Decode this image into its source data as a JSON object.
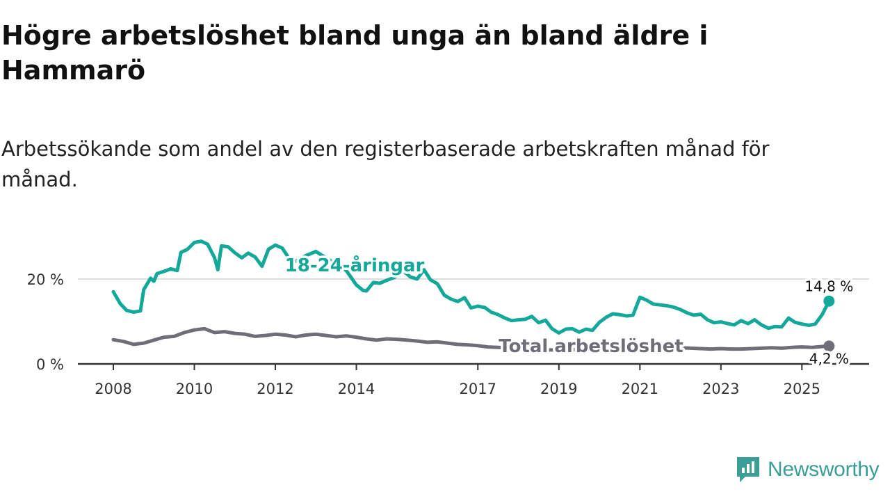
{
  "title": "Högre arbetslöshet bland unga än bland äldre i Hammarö",
  "subtitle": "Arbetssökande som andel av den registerbaserade arbetskraften månad för månad.",
  "brand": {
    "name": "Newsworthy",
    "icon": "newsworthy-logo-icon"
  },
  "colors": {
    "youth": "#14a89a",
    "total": "#6e6e78",
    "grid": "#dddddd",
    "axis": "#333333",
    "brand": "#3a9e96"
  },
  "chart_data": {
    "type": "line",
    "title": "Högre arbetslöshet bland unga än bland äldre i Hammarö",
    "subtitle": "Arbetssökande som andel av den registerbaserade arbetskraften månad för månad.",
    "xlabel": "",
    "ylabel": "",
    "xlim": [
      2008.0,
      2025.75
    ],
    "ylim": [
      0,
      30
    ],
    "grid": true,
    "x_ticks": [
      {
        "value": 2008,
        "label": "2008"
      },
      {
        "value": 2010,
        "label": "2010"
      },
      {
        "value": 2012,
        "label": "2012"
      },
      {
        "value": 2014,
        "label": "2014"
      },
      {
        "value": 2017,
        "label": "2017"
      },
      {
        "value": 2019,
        "label": "2019"
      },
      {
        "value": 2021,
        "label": "2021"
      },
      {
        "value": 2023,
        "label": "2023"
      },
      {
        "value": 2025,
        "label": "2025"
      }
    ],
    "y_ticks": [
      {
        "value": 0,
        "label": "0 %"
      },
      {
        "value": 20,
        "label": "20 %"
      }
    ],
    "series": [
      {
        "name": "18-24-åringar",
        "label": "18-24-åringar",
        "end_label": "14,8 %",
        "end_value": 14.8,
        "points": [
          [
            2008.0,
            17.0
          ],
          [
            2008.17,
            14.2
          ],
          [
            2008.33,
            12.6
          ],
          [
            2008.5,
            12.2
          ],
          [
            2008.67,
            12.5
          ],
          [
            2008.75,
            17.5
          ],
          [
            2008.92,
            20.2
          ],
          [
            2009.0,
            19.5
          ],
          [
            2009.08,
            21.3
          ],
          [
            2009.25,
            21.8
          ],
          [
            2009.42,
            22.4
          ],
          [
            2009.58,
            22.0
          ],
          [
            2009.67,
            26.3
          ],
          [
            2009.83,
            27.0
          ],
          [
            2010.0,
            28.6
          ],
          [
            2010.17,
            28.9
          ],
          [
            2010.33,
            28.2
          ],
          [
            2010.5,
            25.0
          ],
          [
            2010.58,
            22.2
          ],
          [
            2010.67,
            27.8
          ],
          [
            2010.83,
            27.6
          ],
          [
            2011.0,
            26.2
          ],
          [
            2011.17,
            25.0
          ],
          [
            2011.33,
            26.1
          ],
          [
            2011.5,
            25.2
          ],
          [
            2011.67,
            23.0
          ],
          [
            2011.83,
            27.0
          ],
          [
            2012.0,
            28.0
          ],
          [
            2012.17,
            27.3
          ],
          [
            2012.33,
            25.0
          ],
          [
            2012.5,
            24.2
          ],
          [
            2012.75,
            25.5
          ],
          [
            2013.0,
            26.5
          ],
          [
            2013.25,
            25.0
          ],
          [
            2013.5,
            23.5
          ],
          [
            2013.75,
            22.0
          ],
          [
            2014.0,
            18.6
          ],
          [
            2014.17,
            17.3
          ],
          [
            2014.25,
            17.2
          ],
          [
            2014.42,
            19.2
          ],
          [
            2014.58,
            19.0
          ],
          [
            2014.75,
            19.7
          ],
          [
            2014.92,
            20.3
          ],
          [
            2015.17,
            21.8
          ],
          [
            2015.33,
            20.5
          ],
          [
            2015.5,
            20.0
          ],
          [
            2015.67,
            22.2
          ],
          [
            2015.83,
            19.8
          ],
          [
            2016.0,
            18.9
          ],
          [
            2016.17,
            16.2
          ],
          [
            2016.33,
            15.3
          ],
          [
            2016.5,
            14.7
          ],
          [
            2016.67,
            15.6
          ],
          [
            2016.83,
            13.2
          ],
          [
            2017.0,
            13.6
          ],
          [
            2017.17,
            13.3
          ],
          [
            2017.33,
            12.2
          ],
          [
            2017.5,
            11.6
          ],
          [
            2017.67,
            10.8
          ],
          [
            2017.83,
            10.2
          ],
          [
            2018.0,
            10.4
          ],
          [
            2018.17,
            10.5
          ],
          [
            2018.33,
            11.2
          ],
          [
            2018.5,
            9.7
          ],
          [
            2018.67,
            10.3
          ],
          [
            2018.83,
            8.3
          ],
          [
            2019.0,
            7.3
          ],
          [
            2019.17,
            8.2
          ],
          [
            2019.33,
            8.3
          ],
          [
            2019.5,
            7.5
          ],
          [
            2019.67,
            8.2
          ],
          [
            2019.83,
            7.9
          ],
          [
            2020.0,
            9.8
          ],
          [
            2020.17,
            11.0
          ],
          [
            2020.33,
            11.8
          ],
          [
            2020.5,
            11.6
          ],
          [
            2020.67,
            11.3
          ],
          [
            2020.83,
            11.5
          ],
          [
            2021.0,
            15.7
          ],
          [
            2021.17,
            15.0
          ],
          [
            2021.33,
            14.1
          ],
          [
            2021.5,
            13.9
          ],
          [
            2021.67,
            13.7
          ],
          [
            2021.83,
            13.4
          ],
          [
            2022.0,
            12.8
          ],
          [
            2022.17,
            12.0
          ],
          [
            2022.33,
            11.5
          ],
          [
            2022.5,
            11.7
          ],
          [
            2022.67,
            10.4
          ],
          [
            2022.83,
            9.7
          ],
          [
            2023.0,
            9.9
          ],
          [
            2023.17,
            9.5
          ],
          [
            2023.33,
            9.2
          ],
          [
            2023.5,
            10.2
          ],
          [
            2023.67,
            9.5
          ],
          [
            2023.83,
            10.4
          ],
          [
            2024.0,
            9.2
          ],
          [
            2024.17,
            8.4
          ],
          [
            2024.33,
            8.8
          ],
          [
            2024.5,
            8.7
          ],
          [
            2024.67,
            10.8
          ],
          [
            2024.83,
            9.8
          ],
          [
            2025.0,
            9.4
          ],
          [
            2025.17,
            9.1
          ],
          [
            2025.33,
            9.4
          ],
          [
            2025.5,
            11.6
          ],
          [
            2025.67,
            14.8
          ]
        ]
      },
      {
        "name": "Total arbetslöshet",
        "label": "Total arbetslöshet",
        "end_label": "4,2 %",
        "end_value": 4.2,
        "points": [
          [
            2008.0,
            5.7
          ],
          [
            2008.25,
            5.3
          ],
          [
            2008.5,
            4.6
          ],
          [
            2008.75,
            4.9
          ],
          [
            2009.0,
            5.6
          ],
          [
            2009.25,
            6.3
          ],
          [
            2009.5,
            6.5
          ],
          [
            2009.75,
            7.4
          ],
          [
            2010.0,
            8.0
          ],
          [
            2010.25,
            8.3
          ],
          [
            2010.5,
            7.4
          ],
          [
            2010.75,
            7.6
          ],
          [
            2011.0,
            7.2
          ],
          [
            2011.25,
            7.0
          ],
          [
            2011.5,
            6.5
          ],
          [
            2011.75,
            6.7
          ],
          [
            2012.0,
            7.0
          ],
          [
            2012.25,
            6.8
          ],
          [
            2012.5,
            6.4
          ],
          [
            2012.75,
            6.8
          ],
          [
            2013.0,
            7.0
          ],
          [
            2013.25,
            6.7
          ],
          [
            2013.5,
            6.4
          ],
          [
            2013.75,
            6.6
          ],
          [
            2014.0,
            6.3
          ],
          [
            2014.25,
            5.9
          ],
          [
            2014.5,
            5.6
          ],
          [
            2014.75,
            5.9
          ],
          [
            2015.0,
            5.8
          ],
          [
            2015.25,
            5.6
          ],
          [
            2015.5,
            5.4
          ],
          [
            2015.75,
            5.1
          ],
          [
            2016.0,
            5.2
          ],
          [
            2016.25,
            4.9
          ],
          [
            2016.5,
            4.6
          ],
          [
            2016.75,
            4.5
          ],
          [
            2017.0,
            4.3
          ],
          [
            2017.25,
            4.0
          ],
          [
            2017.5,
            3.9
          ],
          [
            2017.75,
            3.8
          ],
          [
            2018.0,
            3.7
          ],
          [
            2018.25,
            3.6
          ],
          [
            2018.5,
            3.5
          ],
          [
            2018.75,
            3.3
          ],
          [
            2019.0,
            3.3
          ],
          [
            2019.25,
            3.3
          ],
          [
            2019.5,
            3.4
          ],
          [
            2019.75,
            3.5
          ],
          [
            2020.0,
            3.8
          ],
          [
            2020.25,
            4.1
          ],
          [
            2020.5,
            4.3
          ],
          [
            2020.75,
            4.2
          ],
          [
            2021.0,
            4.4
          ],
          [
            2021.25,
            4.5
          ],
          [
            2021.5,
            4.3
          ],
          [
            2021.75,
            4.0
          ],
          [
            2022.0,
            3.8
          ],
          [
            2022.25,
            3.7
          ],
          [
            2022.5,
            3.6
          ],
          [
            2022.75,
            3.5
          ],
          [
            2023.0,
            3.6
          ],
          [
            2023.25,
            3.5
          ],
          [
            2023.5,
            3.5
          ],
          [
            2023.75,
            3.6
          ],
          [
            2024.0,
            3.7
          ],
          [
            2024.25,
            3.8
          ],
          [
            2024.5,
            3.7
          ],
          [
            2024.75,
            3.9
          ],
          [
            2025.0,
            4.0
          ],
          [
            2025.25,
            3.9
          ],
          [
            2025.5,
            4.1
          ],
          [
            2025.67,
            4.2
          ]
        ]
      }
    ]
  }
}
